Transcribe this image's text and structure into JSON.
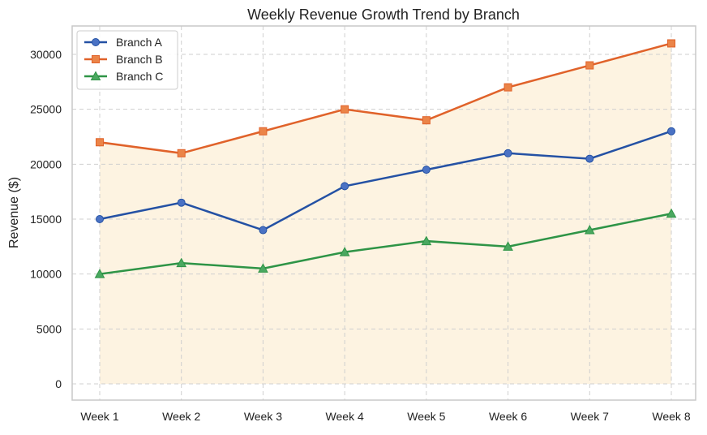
{
  "chart_data": {
    "type": "line",
    "title": "Weekly Revenue Growth Trend by Branch",
    "xlabel": "",
    "ylabel": "Revenue ($)",
    "categories": [
      "Week 1",
      "Week 2",
      "Week 3",
      "Week 4",
      "Week 5",
      "Week 6",
      "Week 7",
      "Week 8"
    ],
    "ylim": [
      -1500,
      32500
    ],
    "yticks": [
      0,
      5000,
      10000,
      15000,
      20000,
      25000,
      30000
    ],
    "grid": true,
    "legend_position": "top-left",
    "fill_under_series": "Branch B",
    "fill_color": "#fdf3e1",
    "series": [
      {
        "name": "Branch A",
        "marker": "circle",
        "line_color": "#2451a4",
        "marker_color": "#4a72c4",
        "values": [
          15000,
          16500,
          14000,
          18000,
          19500,
          21000,
          20500,
          23000
        ]
      },
      {
        "name": "Branch B",
        "marker": "square",
        "line_color": "#e0622a",
        "marker_color": "#eb8448",
        "values": [
          22000,
          21000,
          23000,
          25000,
          24000,
          27000,
          29000,
          31000
        ]
      },
      {
        "name": "Branch C",
        "marker": "triangle",
        "line_color": "#2e9446",
        "marker_color": "#4aa860",
        "values": [
          10000,
          11000,
          10500,
          12000,
          13000,
          12500,
          14000,
          15500
        ]
      }
    ]
  }
}
